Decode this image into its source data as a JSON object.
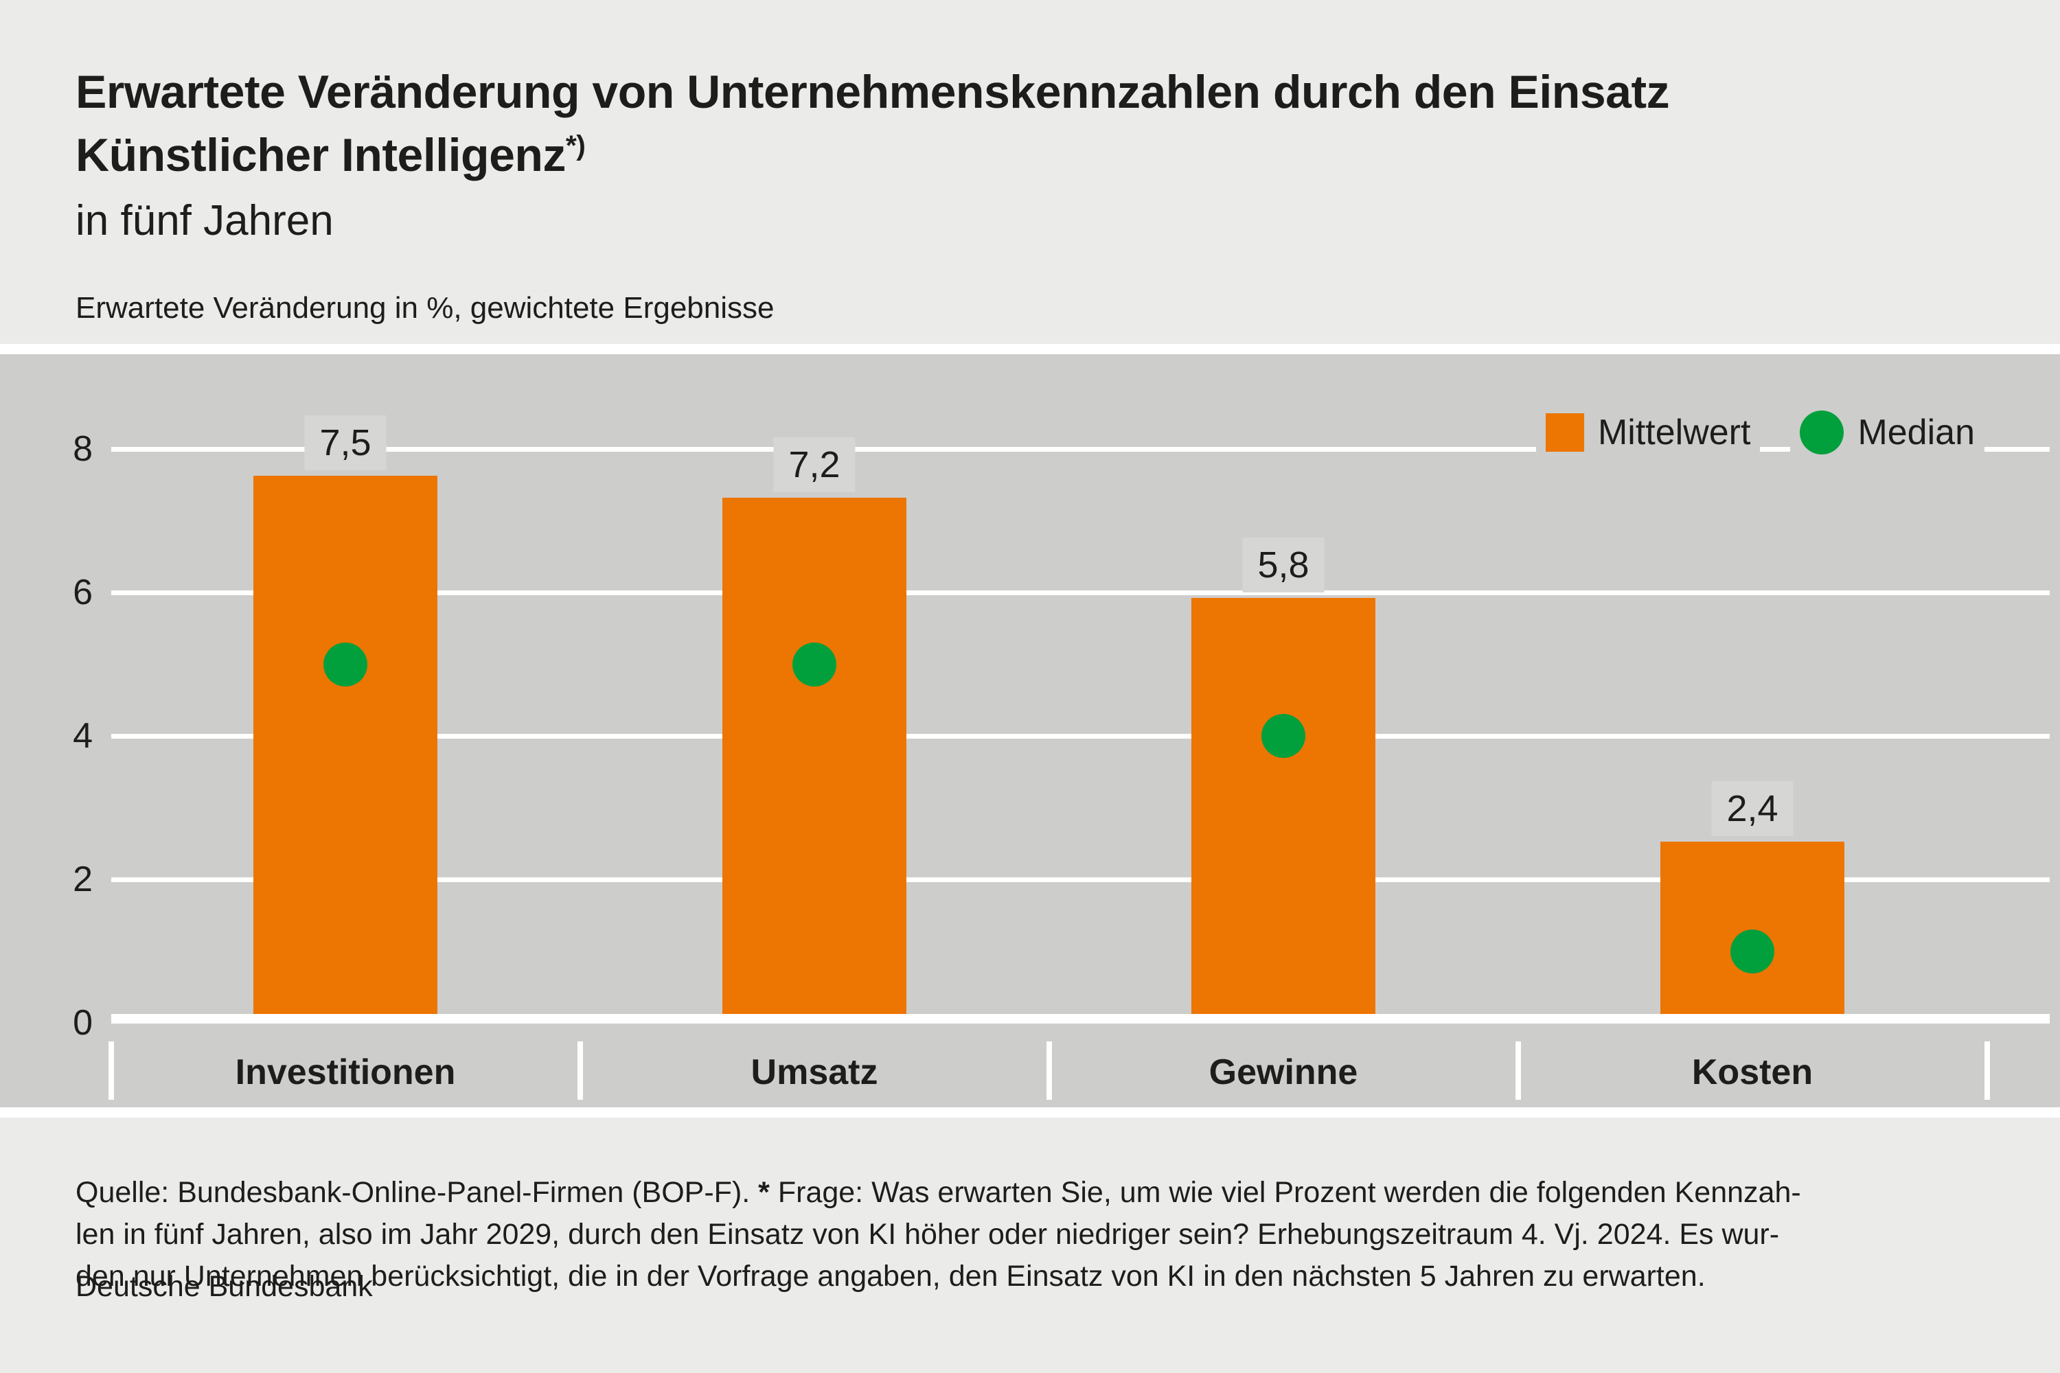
{
  "title": {
    "line1": "Erwartete Veränderung von Unternehmenskennzahlen durch den Einsatz",
    "line2": "Künstlicher Intelligenz",
    "footnote_marker": "*)",
    "subtitle": "in fünf Jahren",
    "units_line": "Erwartete Veränderung in %, gewichtete Ergebnisse"
  },
  "legend": {
    "mean_label": "Mittelwert",
    "median_label": "Median"
  },
  "chart_data": {
    "type": "bar",
    "title": "Erwartete Veränderung von Unternehmenskennzahlen durch den Einsatz Künstlicher Intelligenz in fünf Jahren",
    "ylabel": "Erwartete Veränderung in %, gewichtete Ergebnisse",
    "xlabel": "",
    "categories": [
      "Investitionen",
      "Umsatz",
      "Gewinne",
      "Kosten"
    ],
    "series": [
      {
        "name": "Mittelwert",
        "mark": "bar",
        "values": [
          7.5,
          7.2,
          5.8,
          2.4
        ],
        "value_labels": [
          "7,5",
          "7,2",
          "5,8",
          "2,4"
        ]
      },
      {
        "name": "Median",
        "mark": "point",
        "values": [
          5.0,
          5.0,
          4.0,
          1.0
        ]
      }
    ],
    "yticks": [
      0,
      2,
      4,
      6,
      8
    ],
    "ylim": [
      0,
      8.7
    ],
    "grid": true,
    "gridline_color": "#ffffff",
    "legend_position": "top-right"
  },
  "colors": {
    "page_background": "#ebebea",
    "plot_background": "#cdcdcc",
    "label_chip_background": "#d6d6d5",
    "bar_orange": "#ed7502",
    "median_green": "#02a03c",
    "gridline_white": "#ffffff",
    "text": "#1d1d1b"
  },
  "footer": {
    "line1_before_star": "Quelle: Bundesbank-Online-Panel-Firmen (BOP-F). ",
    "star": "*",
    "line1_after_star": " Frage: Was erwarten Sie, um wie viel Prozent werden die folgenden Kennzah-",
    "line2": "len in fünf Jahren, also im Jahr 2029, durch den Einsatz von KI höher oder niedriger sein? Erhebungszeitraum 4. Vj. 2024. Es wur-",
    "line3": "den nur Unternehmen berücksichtigt, die in der Vorfrage angaben, den Einsatz von KI in den nächsten 5 Jahren zu erwarten."
  },
  "source": "Deutsche Bundesbank"
}
